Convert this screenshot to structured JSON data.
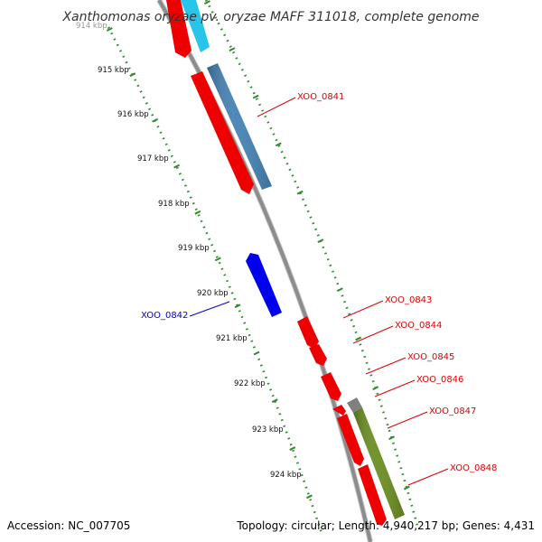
{
  "title": "Xanthomonas oryzae pv. oryzae MAFF 311018, complete genome",
  "footer": {
    "accession": "Accession: NC_007705",
    "summary": "Topology: circular; Length: 4,940,217 bp; Genes: 4,431"
  },
  "kbp_ticks": [
    "914 kbp",
    "915 kbp",
    "916 kbp",
    "917 kbp",
    "918 kbp",
    "919 kbp",
    "920 kbp",
    "921 kbp",
    "922 kbp",
    "923 kbp",
    "924 kbp"
  ],
  "gene_labels": [
    {
      "text": "XOO_0841",
      "color": "#e00000"
    },
    {
      "text": "XOO_0842",
      "color": "#0000cc"
    },
    {
      "text": "XOO_0843",
      "color": "#e00000"
    },
    {
      "text": "XOO_0844",
      "color": "#e00000"
    },
    {
      "text": "XOO_0845",
      "color": "#e00000"
    },
    {
      "text": "XOO_0846",
      "color": "#e00000"
    },
    {
      "text": "XOO_0847",
      "color": "#e00000"
    },
    {
      "text": "XOO_0848",
      "color": "#e00000"
    }
  ],
  "colors": {
    "backbone": "#8c8c8c",
    "tick_dots": "#2e8b2e",
    "gene_forward": "#ee0000",
    "gene_reverse_blue": "#0000ee",
    "gene_steelblue": "#4682b4",
    "gene_cyan": "#29c4ea",
    "gene_olive": "#6b8e23",
    "gene_gray": "#808080"
  }
}
